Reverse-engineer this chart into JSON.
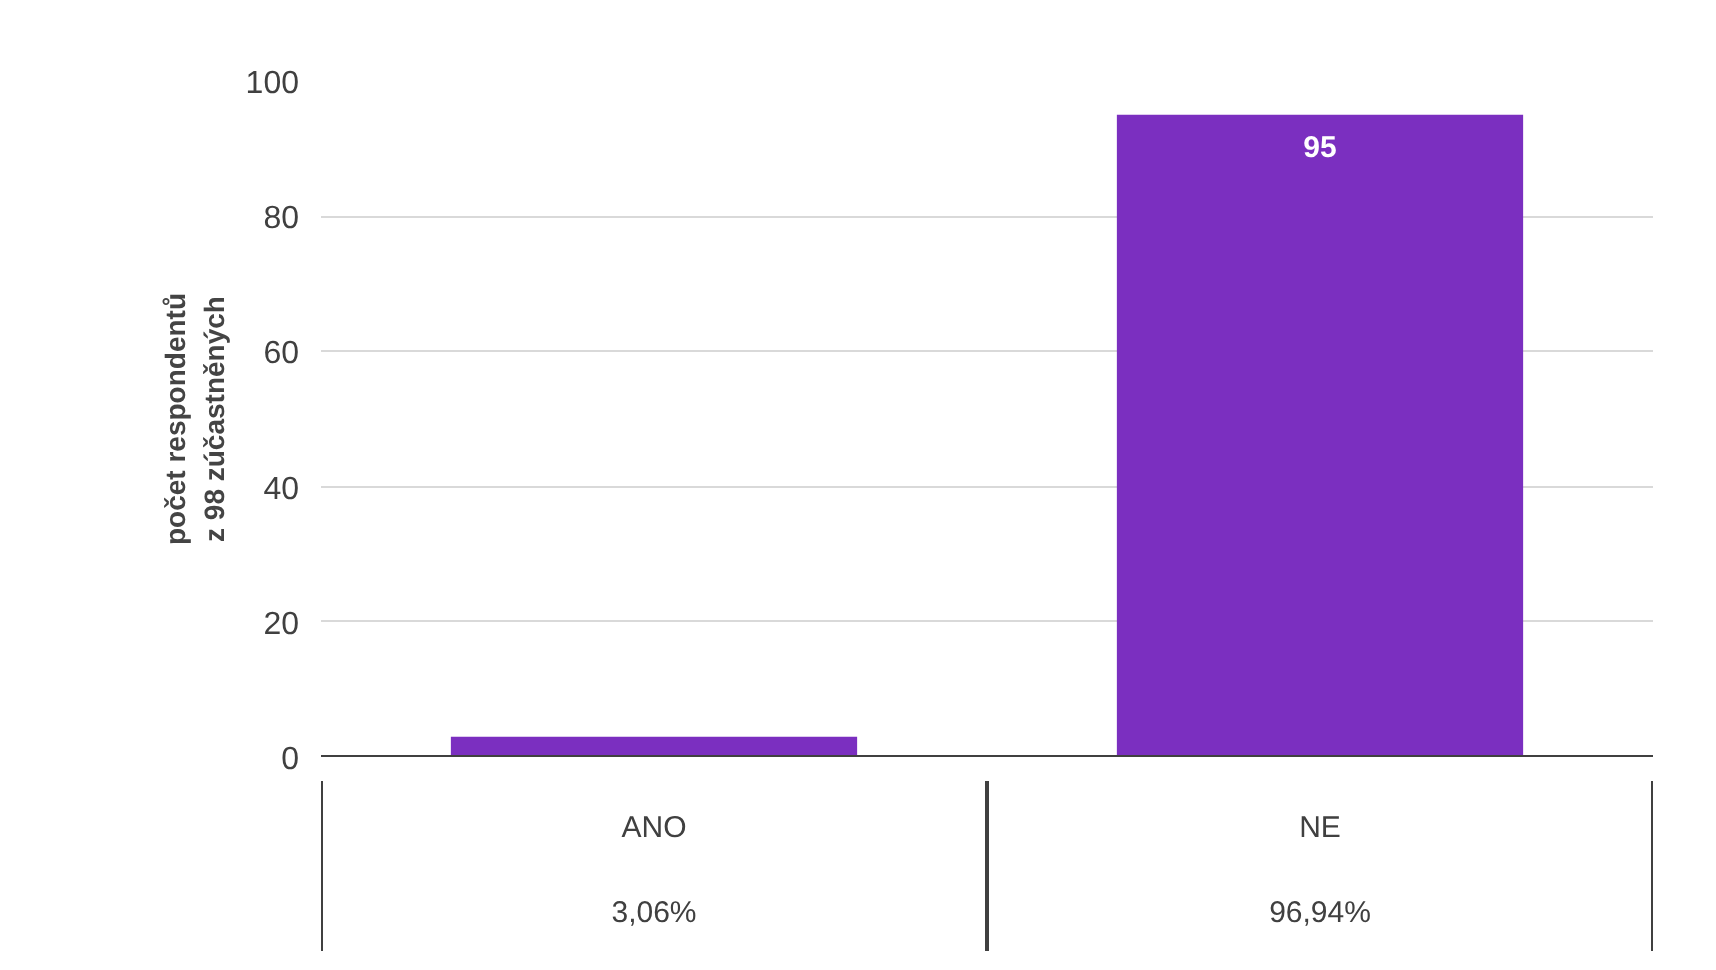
{
  "chart_data": {
    "type": "bar",
    "ylabel": "počet respondentů\nz 98 zúčastněných",
    "categories": [
      "ANO",
      "NE"
    ],
    "values": [
      3,
      95
    ],
    "color": "#7b2fc0",
    "value_labels": [
      null,
      "95"
    ],
    "annotations": [
      "3,06%",
      "96,94%"
    ],
    "ylim": [
      0,
      100
    ],
    "yticks": [
      0,
      20,
      40,
      60,
      80,
      100
    ],
    "grid": "y"
  }
}
